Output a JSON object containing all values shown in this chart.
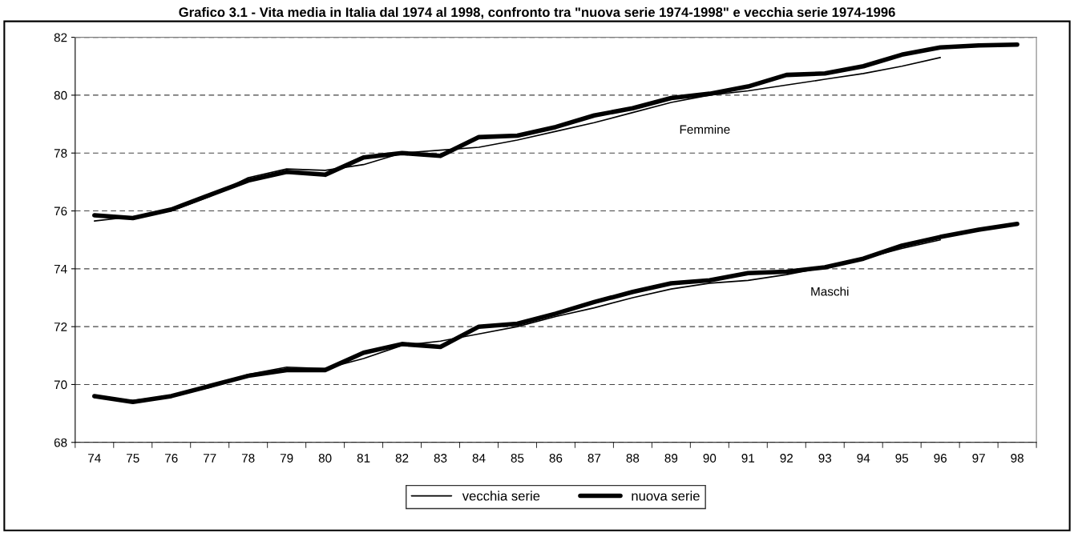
{
  "chart_data": {
    "type": "line",
    "title": "Grafico 3.1 - Vita media in Italia dal 1974 al 1998, confronto tra \"nuova serie 1974-1998\" e vecchia serie 1974-1996",
    "categories": [
      "74",
      "75",
      "76",
      "77",
      "78",
      "79",
      "80",
      "81",
      "82",
      "83",
      "84",
      "85",
      "86",
      "87",
      "88",
      "89",
      "90",
      "91",
      "92",
      "93",
      "94",
      "95",
      "96",
      "97",
      "98"
    ],
    "series": [
      {
        "name": "vecchia serie",
        "color": "#000000",
        "values": [
          75.65,
          75.8,
          76.0,
          76.5,
          77.15,
          77.45,
          77.4,
          77.6,
          78.0,
          78.1,
          78.2,
          78.45,
          78.75,
          79.05,
          79.4,
          79.75,
          80.0,
          80.15,
          80.35,
          80.55,
          80.75,
          81.0,
          81.3,
          null,
          null
        ]
      },
      {
        "name": "nuova serie",
        "color": "#000000",
        "values": [
          75.85,
          75.75,
          76.05,
          76.55,
          77.05,
          77.35,
          77.25,
          77.85,
          78.0,
          77.9,
          78.55,
          78.6,
          78.9,
          79.3,
          79.55,
          79.9,
          80.05,
          80.3,
          80.7,
          80.75,
          81.0,
          81.4,
          81.65,
          81.72,
          81.75
        ]
      },
      {
        "color": "#000000",
        "values": [
          69.55,
          69.45,
          69.6,
          69.9,
          70.35,
          70.6,
          70.55,
          70.9,
          71.35,
          71.5,
          71.75,
          72.0,
          72.35,
          72.65,
          73.0,
          73.3,
          73.5,
          73.6,
          73.8,
          74.05,
          74.35,
          74.7,
          75.0,
          null,
          null
        ]
      },
      {
        "color": "#000000",
        "values": [
          69.6,
          69.4,
          69.6,
          69.95,
          70.3,
          70.5,
          70.5,
          71.1,
          71.4,
          71.3,
          72.0,
          72.1,
          72.45,
          72.85,
          73.2,
          73.5,
          73.6,
          73.85,
          73.9,
          74.05,
          74.35,
          74.8,
          75.1,
          75.35,
          75.55
        ]
      }
    ],
    "annotations": [
      "Femmine",
      "Maschi"
    ],
    "ylim": [
      68,
      82
    ],
    "yticks": [
      68,
      70,
      72,
      74,
      76,
      78,
      80,
      82
    ],
    "grid": "y",
    "legend": "bottom",
    "marker": "none",
    "line_style": "solid"
  }
}
